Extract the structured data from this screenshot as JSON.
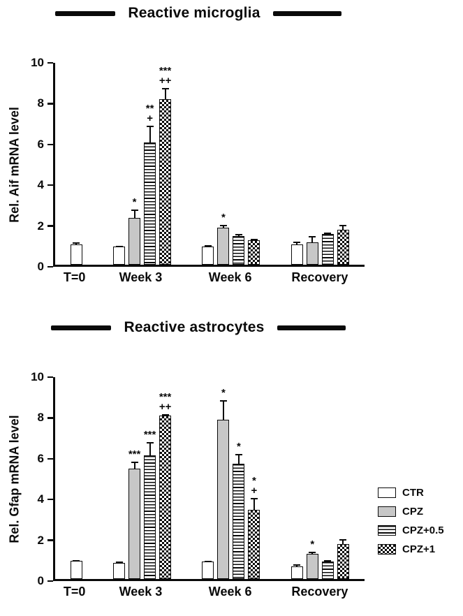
{
  "figure": {
    "background": "#ffffff",
    "text_color": "#0a0a0a"
  },
  "chart_data": [
    {
      "type": "bar",
      "title": "Reactive microglia",
      "ylabel": "Rel. Aif mRNA level",
      "ylim": [
        0,
        10
      ],
      "yticks": [
        0,
        2,
        4,
        6,
        8,
        10
      ],
      "categories": [
        "T=0",
        "Week 3",
        "Week 6",
        "Recovery"
      ],
      "grid": false,
      "series": [
        {
          "name": "CTR",
          "pattern": "white",
          "values": [
            1.0,
            0.9,
            0.9,
            1.0
          ],
          "errors": [
            0.12,
            0.05,
            0.08,
            0.15
          ],
          "annotations": [
            [],
            [],
            [],
            []
          ]
        },
        {
          "name": "CPZ",
          "pattern": "gray",
          "values": [
            null,
            2.3,
            1.8,
            1.1
          ],
          "errors": [
            null,
            0.45,
            0.2,
            0.35
          ],
          "annotations": [
            [],
            [
              "*"
            ],
            [
              "*"
            ],
            []
          ]
        },
        {
          "name": "CPZ+0.5",
          "pattern": "stripes",
          "values": [
            null,
            6.0,
            1.4,
            1.5
          ],
          "errors": [
            null,
            0.85,
            0.15,
            0.12
          ],
          "annotations": [
            [],
            [
              "**",
              "+"
            ],
            [],
            []
          ]
        },
        {
          "name": "CPZ+1",
          "pattern": "checker",
          "values": [
            null,
            8.1,
            1.2,
            1.7
          ],
          "errors": [
            null,
            0.6,
            0.1,
            0.3
          ],
          "annotations": [
            [],
            [
              "***",
              "++"
            ],
            [],
            []
          ]
        }
      ]
    },
    {
      "type": "bar",
      "title": "Reactive astrocytes",
      "ylabel": "Rel. Gfap mRNA level",
      "ylim": [
        0,
        10
      ],
      "yticks": [
        0,
        2,
        4,
        6,
        8,
        10
      ],
      "categories": [
        "T=0",
        "Week 3",
        "Week 6",
        "Recovery"
      ],
      "grid": false,
      "series": [
        {
          "name": "CTR",
          "pattern": "white",
          "values": [
            0.9,
            0.8,
            0.85,
            0.6
          ],
          "errors": [
            0.06,
            0.08,
            0.06,
            0.15
          ],
          "annotations": [
            [],
            [],
            [],
            []
          ]
        },
        {
          "name": "CPZ",
          "pattern": "gray",
          "values": [
            null,
            5.4,
            7.8,
            1.25
          ],
          "errors": [
            null,
            0.4,
            1.0,
            0.12
          ],
          "annotations": [
            [],
            [
              "***"
            ],
            [
              "*"
            ],
            [
              "*"
            ]
          ]
        },
        {
          "name": "CPZ+0.5",
          "pattern": "stripes",
          "values": [
            null,
            6.05,
            5.65,
            0.85
          ],
          "errors": [
            null,
            0.7,
            0.5,
            0.12
          ],
          "annotations": [
            [],
            [
              "***"
            ],
            [
              "*"
            ],
            []
          ]
        },
        {
          "name": "CPZ+1",
          "pattern": "checker",
          "values": [
            null,
            8.0,
            3.4,
            1.7
          ],
          "errors": [
            null,
            0.12,
            0.6,
            0.3
          ],
          "annotations": [
            [],
            [
              "***",
              "++"
            ],
            [
              "*",
              "+"
            ],
            []
          ]
        }
      ]
    }
  ],
  "legend": {
    "items": [
      {
        "label": "CTR",
        "pattern": "white"
      },
      {
        "label": "CPZ",
        "pattern": "gray"
      },
      {
        "label": "CPZ+0.5",
        "pattern": "stripes"
      },
      {
        "label": "CPZ+1",
        "pattern": "checker"
      }
    ]
  }
}
